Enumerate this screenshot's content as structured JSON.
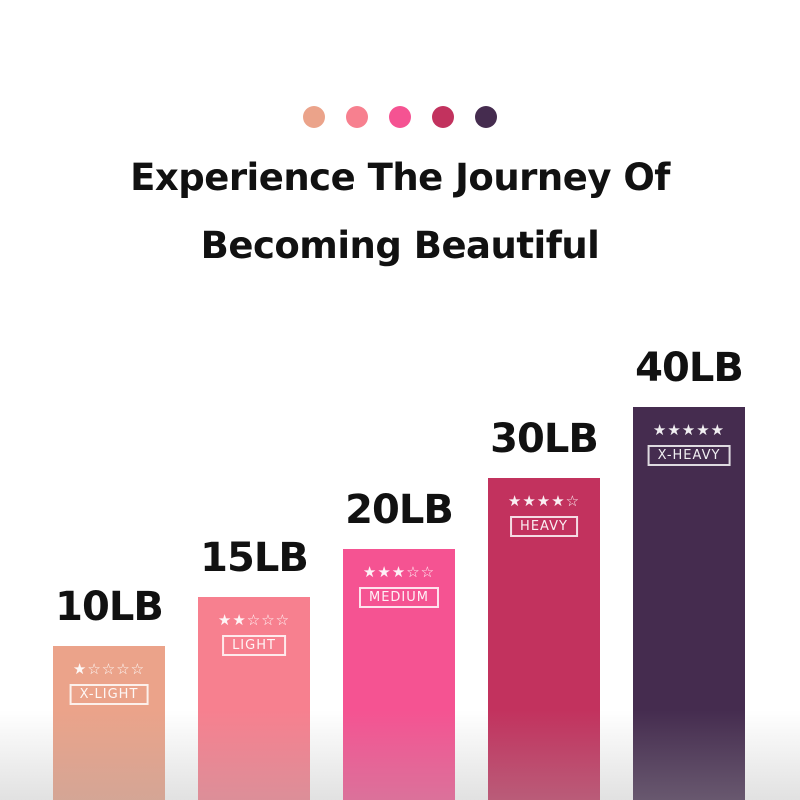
{
  "header": {
    "dot_colors": [
      "#eba38a",
      "#f7808f",
      "#f55392",
      "#c2325e",
      "#452c4f"
    ],
    "title_line1": "Experience The Journey Of",
    "title_line2": "Becoming Beautiful"
  },
  "chart_data": {
    "type": "bar",
    "categories": [
      "X-LIGHT",
      "LIGHT",
      "MEDIUM",
      "HEAVY",
      "X-HEAVY"
    ],
    "values": [
      10,
      15,
      20,
      30,
      40
    ],
    "value_labels": [
      "10LB",
      "15LB",
      "20LB",
      "30LB",
      "40LB"
    ],
    "star_ratings": [
      1,
      2,
      3,
      4,
      5
    ],
    "star_max": 5,
    "colors": [
      "#eba38a",
      "#f7808f",
      "#f55392",
      "#c2325e",
      "#452c4f"
    ],
    "unit": "LB",
    "grid": false
  }
}
